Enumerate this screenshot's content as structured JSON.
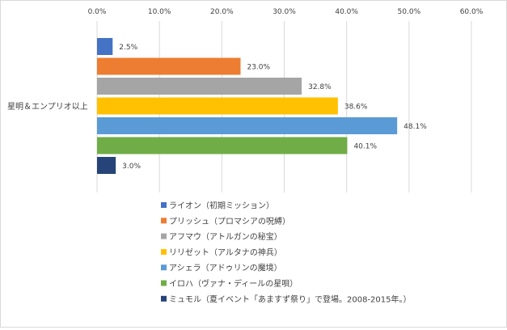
{
  "chart_data": {
    "type": "bar",
    "orientation": "horizontal",
    "categories": [
      "星明＆エンプリオ以上"
    ],
    "x_ticks": [
      "0.0%",
      "10.0%",
      "20.0%",
      "30.0%",
      "40.0%",
      "50.0%",
      "60.0%"
    ],
    "xlim": [
      0,
      60
    ],
    "x_axis_position": "top",
    "grid": true,
    "legend_position": "bottom",
    "series": [
      {
        "name": "ライオン（初期ミッション）",
        "color": "#4472C4",
        "values": [
          2.5
        ],
        "label": "2.5%"
      },
      {
        "name": "プリッシュ（プロマシアの呪縛）",
        "color": "#ED7D31",
        "values": [
          23.0
        ],
        "label": "23.0%"
      },
      {
        "name": "アフマウ（アトルガンの秘宝）",
        "color": "#A5A5A5",
        "values": [
          32.8
        ],
        "label": "32.8%"
      },
      {
        "name": "リリゼット（アルタナの神兵）",
        "color": "#FFC000",
        "values": [
          38.6
        ],
        "label": "38.6%"
      },
      {
        "name": "アシェラ（アドゥリンの魔境）",
        "color": "#5B9BD5",
        "values": [
          48.1
        ],
        "label": "48.1%"
      },
      {
        "name": "イロハ（ヴァナ・ディールの星唄）",
        "color": "#70AD47",
        "values": [
          40.1
        ],
        "label": "40.1%"
      },
      {
        "name": "ミュモル（夏イベント「あますず祭り」で登場。2008-2015年。）",
        "color": "#264478",
        "values": [
          3.0
        ],
        "label": "3.0%"
      }
    ]
  }
}
